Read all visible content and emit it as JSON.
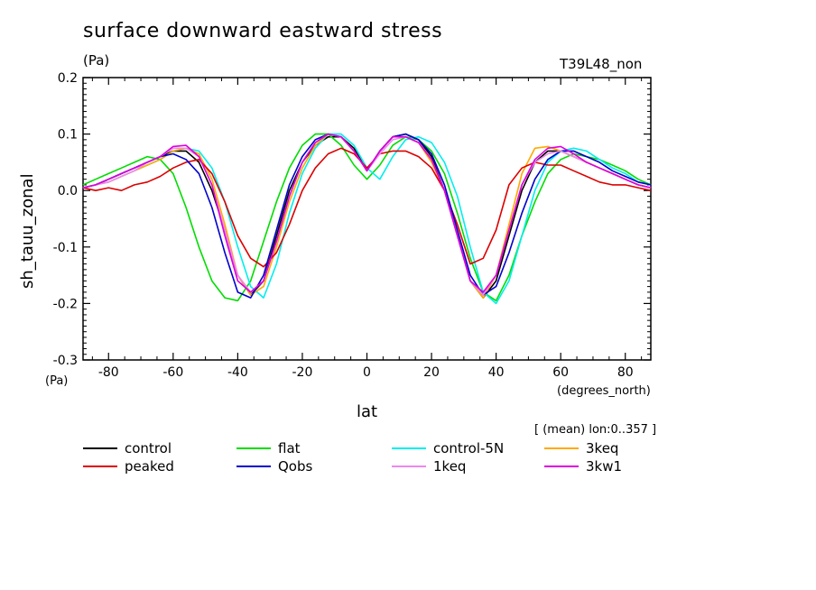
{
  "header": {
    "title": "surface downward eastward stress",
    "units": "(Pa)",
    "run_label": "T39L48_non"
  },
  "axes": {
    "ylabel": "sh_tauu_zonal",
    "yunit": "(Pa)",
    "xlabel": "lat",
    "xunit": "(degrees_north)",
    "mean_label": "[ (mean) lon:0..357 ]"
  },
  "chart_data": {
    "type": "line",
    "title": "surface downward eastward stress",
    "xlabel": "lat",
    "ylabel": "sh_tauu_zonal",
    "xlim": [
      -87.9,
      87.9
    ],
    "ylim": [
      -0.3,
      0.2
    ],
    "xticks": [
      -80,
      -60,
      -40,
      -20,
      0,
      20,
      40,
      60,
      80
    ],
    "xtick_labels": [
      "-80",
      "-60",
      "-40",
      "-20",
      "0",
      "20",
      "40",
      "60",
      "80"
    ],
    "yticks": [
      -0.3,
      -0.2,
      -0.1,
      0.0,
      0.1,
      0.2
    ],
    "ytick_labels": [
      "-0.3",
      "-0.2",
      "-0.1",
      "0.0",
      "0.1",
      "0.2"
    ],
    "grid": false,
    "legend_position": "below",
    "x": [
      -87.9,
      -84,
      -80,
      -76,
      -72,
      -68,
      -64,
      -60,
      -56,
      -52,
      -48,
      -44,
      -40,
      -36,
      -32,
      -28,
      -24,
      -20,
      -16,
      -12,
      -8,
      -4,
      0,
      4,
      8,
      12,
      16,
      20,
      24,
      28,
      32,
      36,
      40,
      44,
      48,
      52,
      56,
      60,
      64,
      68,
      72,
      76,
      80,
      84,
      87.9
    ],
    "series": [
      {
        "name": "control",
        "color": "#000000",
        "values": [
          0.005,
          0.01,
          0.02,
          0.03,
          0.04,
          0.05,
          0.06,
          0.07,
          0.07,
          0.05,
          0.0,
          -0.07,
          -0.15,
          -0.185,
          -0.16,
          -0.08,
          0.0,
          0.05,
          0.08,
          0.095,
          0.095,
          0.075,
          0.035,
          0.07,
          0.095,
          0.1,
          0.09,
          0.06,
          0.0,
          -0.08,
          -0.16,
          -0.19,
          -0.16,
          -0.08,
          0.0,
          0.05,
          0.07,
          0.07,
          0.06,
          0.05,
          0.04,
          0.03,
          0.02,
          0.01,
          0.005
        ]
      },
      {
        "name": "flat",
        "color": "#00dd00",
        "values": [
          0.01,
          0.02,
          0.03,
          0.04,
          0.05,
          0.06,
          0.055,
          0.03,
          -0.03,
          -0.1,
          -0.16,
          -0.19,
          -0.195,
          -0.16,
          -0.09,
          -0.02,
          0.04,
          0.08,
          0.1,
          0.1,
          0.08,
          0.045,
          0.02,
          0.045,
          0.08,
          0.095,
          0.09,
          0.07,
          0.03,
          -0.04,
          -0.12,
          -0.18,
          -0.195,
          -0.15,
          -0.08,
          -0.02,
          0.03,
          0.055,
          0.065,
          0.06,
          0.055,
          0.045,
          0.035,
          0.02,
          0.01
        ]
      },
      {
        "name": "control-5N",
        "color": "#00eeee",
        "values": [
          0.005,
          0.01,
          0.015,
          0.025,
          0.035,
          0.045,
          0.055,
          0.07,
          0.075,
          0.07,
          0.04,
          -0.02,
          -0.1,
          -0.17,
          -0.19,
          -0.13,
          -0.04,
          0.03,
          0.075,
          0.1,
          0.1,
          0.08,
          0.04,
          0.02,
          0.06,
          0.09,
          0.095,
          0.085,
          0.05,
          -0.01,
          -0.1,
          -0.18,
          -0.2,
          -0.16,
          -0.08,
          0.0,
          0.05,
          0.07,
          0.075,
          0.07,
          0.055,
          0.04,
          0.03,
          0.015,
          0.01
        ]
      },
      {
        "name": "3keq",
        "color": "#ffaa00",
        "values": [
          0.005,
          0.01,
          0.015,
          0.025,
          0.035,
          0.045,
          0.055,
          0.07,
          0.075,
          0.065,
          0.02,
          -0.06,
          -0.15,
          -0.185,
          -0.17,
          -0.1,
          -0.02,
          0.04,
          0.08,
          0.1,
          0.095,
          0.07,
          0.035,
          0.07,
          0.095,
          0.095,
          0.085,
          0.05,
          0.0,
          -0.08,
          -0.16,
          -0.19,
          -0.15,
          -0.06,
          0.03,
          0.075,
          0.078,
          0.07,
          0.06,
          0.05,
          0.04,
          0.03,
          0.02,
          0.01,
          0.005
        ]
      },
      {
        "name": "peaked",
        "color": "#dd0000",
        "values": [
          0.005,
          0.0,
          0.005,
          0.0,
          0.01,
          0.015,
          0.025,
          0.04,
          0.05,
          0.055,
          0.03,
          -0.02,
          -0.08,
          -0.12,
          -0.135,
          -0.11,
          -0.06,
          0.0,
          0.04,
          0.065,
          0.075,
          0.065,
          0.04,
          0.065,
          0.07,
          0.07,
          0.06,
          0.04,
          0.0,
          -0.06,
          -0.13,
          -0.12,
          -0.07,
          0.01,
          0.04,
          0.05,
          0.045,
          0.045,
          0.035,
          0.025,
          0.015,
          0.01,
          0.01,
          0.005,
          0.0
        ]
      },
      {
        "name": "Qobs",
        "color": "#0000cc",
        "values": [
          0.005,
          0.01,
          0.02,
          0.03,
          0.04,
          0.05,
          0.06,
          0.065,
          0.055,
          0.03,
          -0.03,
          -0.11,
          -0.18,
          -0.19,
          -0.15,
          -0.07,
          0.01,
          0.06,
          0.09,
          0.1,
          0.095,
          0.07,
          0.035,
          0.07,
          0.095,
          0.1,
          0.09,
          0.065,
          0.01,
          -0.07,
          -0.15,
          -0.185,
          -0.17,
          -0.11,
          -0.04,
          0.02,
          0.055,
          0.07,
          0.07,
          0.06,
          0.05,
          0.035,
          0.025,
          0.015,
          0.01
        ]
      },
      {
        "name": "1keq",
        "color": "#ee88ee",
        "values": [
          0.005,
          0.01,
          0.015,
          0.025,
          0.035,
          0.05,
          0.06,
          0.075,
          0.075,
          0.06,
          0.01,
          -0.07,
          -0.15,
          -0.18,
          -0.16,
          -0.09,
          -0.01,
          0.05,
          0.085,
          0.1,
          0.095,
          0.07,
          0.035,
          0.065,
          0.09,
          0.095,
          0.085,
          0.055,
          0.0,
          -0.08,
          -0.16,
          -0.185,
          -0.15,
          -0.07,
          0.01,
          0.05,
          0.065,
          0.07,
          0.06,
          0.05,
          0.04,
          0.03,
          0.02,
          0.01,
          0.005
        ]
      },
      {
        "name": "3kw1",
        "color": "#dd00dd",
        "values": [
          0.005,
          0.01,
          0.02,
          0.03,
          0.04,
          0.05,
          0.06,
          0.078,
          0.08,
          0.06,
          0.01,
          -0.08,
          -0.16,
          -0.18,
          -0.16,
          -0.09,
          -0.01,
          0.05,
          0.085,
          0.1,
          0.095,
          0.07,
          0.035,
          0.07,
          0.095,
          0.095,
          0.085,
          0.055,
          0.0,
          -0.08,
          -0.16,
          -0.18,
          -0.15,
          -0.07,
          0.01,
          0.055,
          0.075,
          0.078,
          0.065,
          0.05,
          0.04,
          0.03,
          0.02,
          0.01,
          0.005
        ]
      }
    ]
  }
}
